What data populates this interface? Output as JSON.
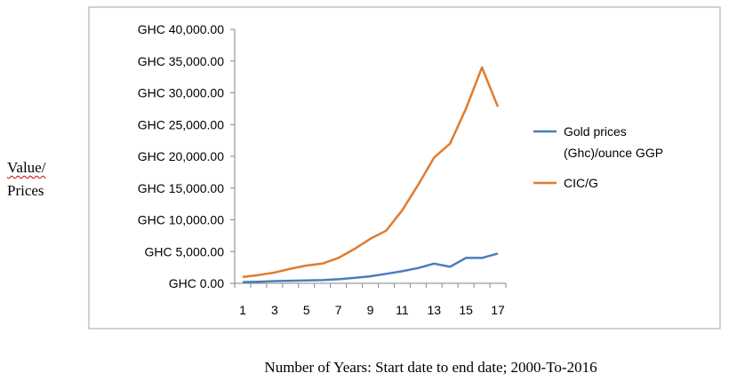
{
  "chart_data": {
    "type": "line",
    "title": "",
    "xlabel": "Number of Years: Start date to end date; 2000-To-2016",
    "ylabel_line1": "Value/",
    "ylabel_line2": "Prices",
    "x": [
      1,
      2,
      3,
      4,
      5,
      6,
      7,
      8,
      9,
      10,
      11,
      12,
      13,
      14,
      15,
      16,
      17
    ],
    "x_tick_labels": [
      "1",
      "3",
      "5",
      "7",
      "9",
      "11",
      "13",
      "15",
      "17"
    ],
    "y_tick_labels": [
      "GHC 0.00",
      "GHC 5,000.00",
      "GHC 10,000.00",
      "GHC 15,000.00",
      "GHC 20,000.00",
      "GHC 25,000.00",
      "GHC 30,000.00",
      "GHC 35,000.00",
      "GHC 40,000.00"
    ],
    "ylim": [
      0,
      40000
    ],
    "grid": false,
    "legend_position": "right",
    "series": [
      {
        "name": "Gold prices (Ghc)/ounce GGP",
        "name_line1": "Gold prices",
        "name_line2": "(Ghc)/ounce GGP",
        "color": "#4a7ebb",
        "values": [
          200,
          250,
          350,
          400,
          450,
          500,
          650,
          850,
          1100,
          1500,
          1900,
          2400,
          3100,
          2600,
          4000,
          4000,
          4700
        ]
      },
      {
        "name": "CIC/G",
        "color": "#e07b2e",
        "values": [
          1000,
          1300,
          1700,
          2300,
          2800,
          3100,
          4000,
          5400,
          7000,
          8300,
          11500,
          15500,
          19800,
          22000,
          27500,
          34000,
          27800
        ]
      }
    ]
  }
}
